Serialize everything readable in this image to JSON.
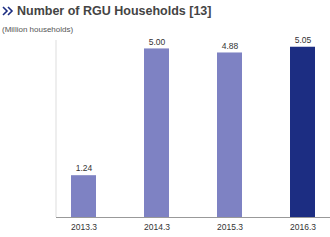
{
  "chart_data": {
    "type": "bar",
    "title": "Number of RGU Households [13]",
    "subtitle": "(Million households)",
    "categories": [
      "2013.3",
      "2014.3",
      "2015.3",
      "2016.3"
    ],
    "values": [
      1.24,
      5.0,
      4.88,
      5.05
    ],
    "value_labels": [
      "1.24",
      "5.00",
      "4.88",
      "5.05"
    ],
    "colors": [
      "#7e82c3",
      "#7e82c3",
      "#7e82c3",
      "#1c2d82"
    ],
    "ylim": [
      0,
      5.25
    ],
    "yticks": [],
    "grid": false,
    "data_labels": true,
    "tick_labels": "x"
  }
}
